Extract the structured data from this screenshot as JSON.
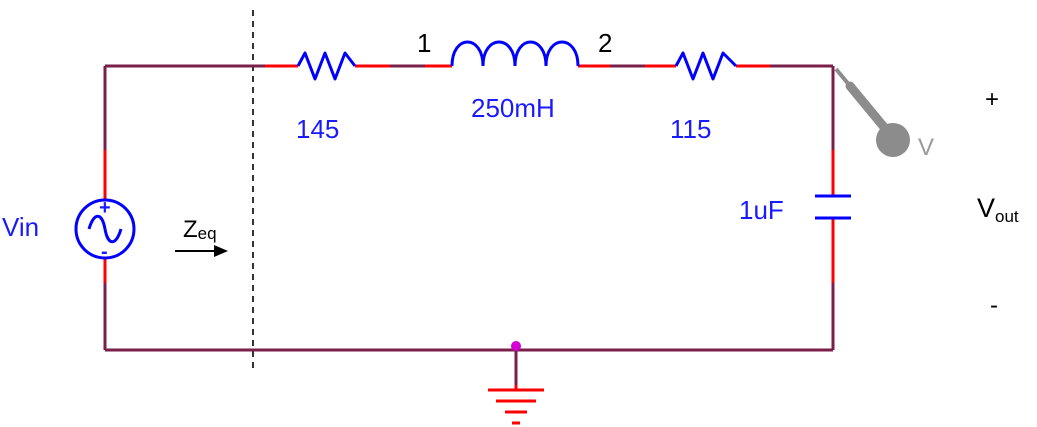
{
  "components": {
    "source": {
      "label": "Vin",
      "plus": "+",
      "minus": "-"
    },
    "resistor_left": {
      "value": "145"
    },
    "inductor": {
      "value": "250mH"
    },
    "resistor_right": {
      "value": "115"
    },
    "capacitor": {
      "value": "1uF"
    },
    "probe": {
      "label": "V"
    }
  },
  "nodes": {
    "node1": "1",
    "node2": "2"
  },
  "impedance": {
    "main": "Z",
    "sub": "eq"
  },
  "output": {
    "plus": "+",
    "main": "V",
    "sub": "out",
    "minus": "-"
  },
  "colors": {
    "wire": "#7a1f4a",
    "lead": "#ff0000",
    "component": "#0000ff",
    "label": "#1a1aff",
    "probe": "#8c8c8c",
    "junction": "#d400d4"
  }
}
